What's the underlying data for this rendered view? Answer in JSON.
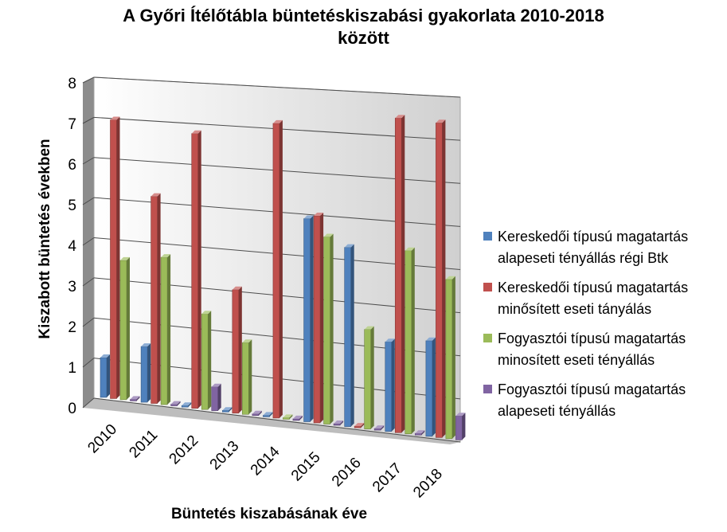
{
  "chart_data": {
    "type": "bar",
    "title_lines": [
      "A Győri Ítélőtábla büntetéskiszabási gyakorlata 2010-2018",
      "között"
    ],
    "xlabel": "Büntetés kiszabásának éve",
    "ylabel": "Kiszabott büntetés években",
    "ylim": [
      0,
      8
    ],
    "yticks": [
      "0",
      "1",
      "2",
      "3",
      "4",
      "5",
      "6",
      "7",
      "8"
    ],
    "categories": [
      "2010",
      "2011",
      "2012",
      "2013",
      "2014",
      "2015",
      "2016",
      "2017",
      "2018"
    ],
    "series": [
      {
        "name_lines": [
          "Kereskedői típusú magatartás",
          "alapeseti tényállás régi Btk"
        ],
        "color": "#4F81BD",
        "values": [
          1,
          1.4,
          0,
          0,
          0,
          5.1,
          4.5,
          2.25,
          2.4
        ]
      },
      {
        "name_lines": [
          "Kereskedői típusú magatartás",
          "minősített eseti tányálás"
        ],
        "color": "#C0504D",
        "values": [
          7,
          5.2,
          6.9,
          3.1,
          7.4,
          5.2,
          0,
          7.9,
          7.9
        ]
      },
      {
        "name_lines": [
          "Fogyasztói típusú magatartás",
          "minosített eseti tényállás"
        ],
        "color": "#9BBB59",
        "values": [
          3.5,
          3.7,
          2.4,
          1.8,
          0,
          4.7,
          2.5,
          4.6,
          4.0
        ]
      },
      {
        "name_lines": [
          "Fogyasztói típusú magatartás",
          "alapeseti tényállás"
        ],
        "color": "#8064A2",
        "values": [
          0,
          0,
          0.6,
          0,
          0,
          0,
          0,
          0,
          0.6
        ]
      }
    ],
    "grid": true,
    "legend_position": "right"
  }
}
